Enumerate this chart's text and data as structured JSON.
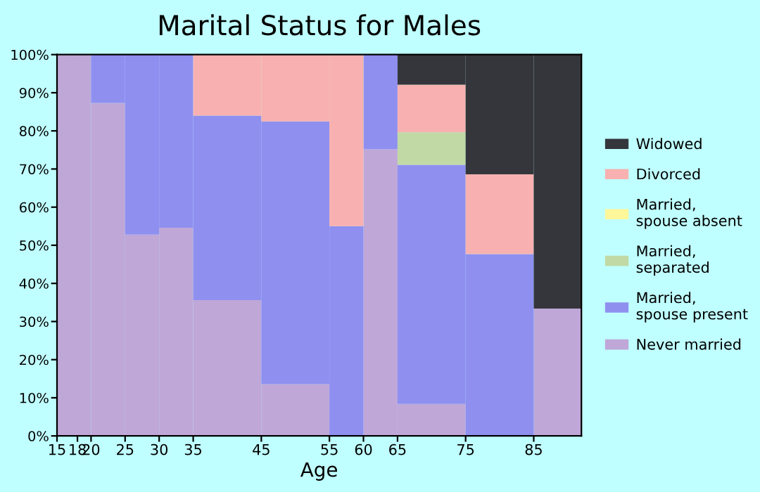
{
  "chart_data": {
    "type": "bar",
    "stacked": true,
    "title": "Marital Status for Males",
    "xlabel": "Age",
    "x": [
      16.5,
      19,
      22.5,
      27.5,
      32.5,
      40,
      50,
      57.5,
      62.5,
      70,
      80,
      88.5
    ],
    "series": [
      {
        "name": "Never married",
        "color": "#bfa7d8",
        "values": [
          100,
          100,
          87.3,
          52.8,
          54.6,
          35.6,
          13.6,
          0,
          75.2,
          8.4,
          0,
          33.4
        ]
      },
      {
        "name": "Married, spouse present",
        "color": "#8f8ff0",
        "values": [
          0,
          0,
          12.7,
          47.2,
          45.4,
          48.4,
          68.9,
          55.0,
          24.8,
          62.7,
          47.7,
          0
        ]
      },
      {
        "name": "Married, separated",
        "color": "#c1d9a5",
        "values": [
          0,
          0,
          0,
          0,
          0,
          0,
          0,
          0,
          0,
          8.5,
          0,
          0
        ]
      },
      {
        "name": "Married, spouse absent",
        "color": "#fdf79a",
        "values": [
          0,
          0,
          0,
          0,
          0,
          0,
          0,
          0,
          0,
          0,
          0,
          0
        ]
      },
      {
        "name": "Divorced",
        "color": "#f8b1b0",
        "values": [
          0,
          0,
          0,
          0,
          0,
          16.0,
          17.5,
          45.0,
          0,
          12.5,
          20.9,
          0
        ]
      },
      {
        "name": "Widowed",
        "color": "#35363c",
        "values": [
          0,
          0,
          0,
          0,
          0,
          0,
          0,
          0,
          0,
          7.9,
          31.4,
          66.6
        ]
      }
    ],
    "xlim": [
      15,
      92
    ],
    "ylim": [
      0,
      100
    ],
    "xticks": [
      15,
      18,
      20,
      25,
      30,
      35,
      45,
      55,
      60,
      65,
      75,
      85
    ],
    "yticks": [
      {
        "value": 0,
        "label": "0%"
      },
      {
        "value": 10,
        "label": "10%"
      },
      {
        "value": 20,
        "label": "20%"
      },
      {
        "value": 30,
        "label": "30%"
      },
      {
        "value": 40,
        "label": "40%"
      },
      {
        "value": 50,
        "label": "50%"
      },
      {
        "value": 60,
        "label": "60%"
      },
      {
        "value": 70,
        "label": "70%"
      },
      {
        "value": 80,
        "label": "80%"
      },
      {
        "value": 90,
        "label": "90%"
      },
      {
        "value": 100,
        "label": "100%"
      }
    ],
    "legend": "right"
  }
}
